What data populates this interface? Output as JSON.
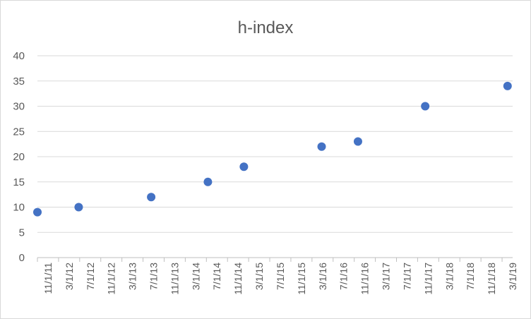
{
  "chart_data": {
    "type": "scatter",
    "title": "h-index",
    "xlabel": "",
    "ylabel": "",
    "ylim": [
      0,
      40
    ],
    "yticks": [
      0,
      5,
      10,
      15,
      20,
      25,
      30,
      35,
      40
    ],
    "xlim": [
      "2011-11-01",
      "2019-07-01"
    ],
    "xtick_labels": [
      "11/1/11",
      "3/1/12",
      "7/1/12",
      "11/1/12",
      "3/1/13",
      "7/1/13",
      "11/1/13",
      "3/1/14",
      "7/1/14",
      "11/1/14",
      "3/1/15",
      "7/1/15",
      "11/1/15",
      "3/1/16",
      "7/1/16",
      "11/1/16",
      "3/1/17",
      "7/1/17",
      "11/1/17",
      "3/1/18",
      "7/1/18",
      "11/1/18",
      "3/1/19"
    ],
    "grid": true,
    "legend": "none",
    "marker_color": "#4472c4",
    "points": [
      {
        "x": "2011-11-01",
        "y": 9
      },
      {
        "x": "2012-07-01",
        "y": 10
      },
      {
        "x": "2013-09-01",
        "y": 12
      },
      {
        "x": "2014-08-01",
        "y": 15
      },
      {
        "x": "2015-03-01",
        "y": 18
      },
      {
        "x": "2016-06-01",
        "y": 22
      },
      {
        "x": "2017-01-01",
        "y": 23
      },
      {
        "x": "2018-02-01",
        "y": 30
      },
      {
        "x": "2019-06-01",
        "y": 34
      }
    ]
  }
}
